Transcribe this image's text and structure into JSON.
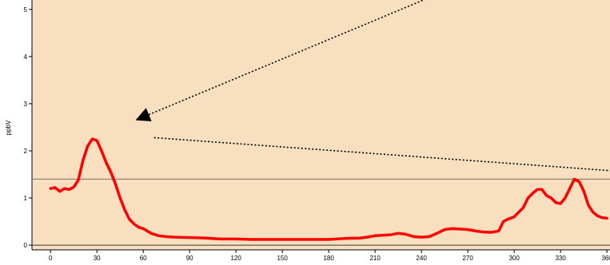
{
  "chart_data": {
    "type": "line",
    "title": "",
    "xlabel": "",
    "ylabel": "ppbV",
    "xlim": [
      -12,
      362
    ],
    "ylim": [
      -0.1,
      5.2
    ],
    "x_ticks": [
      0,
      30,
      60,
      90,
      120,
      150,
      180,
      210,
      240,
      270,
      300,
      330,
      360
    ],
    "y_ticks": [
      0,
      1,
      2,
      3,
      4,
      5
    ],
    "grid": false,
    "colors": {
      "plot_background": "#f7dfc0",
      "series": "#ff0000",
      "reference_line": "#8a7a6a",
      "arrows": "#000000"
    },
    "series": [
      {
        "x": [
          0,
          3,
          6,
          9,
          12,
          15,
          18,
          21,
          24,
          27,
          30,
          33,
          36,
          39,
          42,
          45,
          48,
          51,
          54,
          57,
          60,
          65,
          70,
          75,
          80,
          90,
          100,
          110,
          120,
          130,
          140,
          150,
          160,
          170,
          180,
          190,
          200,
          205,
          210,
          215,
          220,
          225,
          230,
          235,
          240,
          245,
          250,
          255,
          260,
          265,
          270,
          275,
          280,
          285,
          290,
          293,
          296,
          300,
          303,
          306,
          309,
          312,
          315,
          318,
          321,
          324,
          327,
          330,
          333,
          336,
          339,
          342,
          345,
          348,
          351,
          354,
          357,
          360
        ],
        "y": [
          1.2,
          1.22,
          1.14,
          1.2,
          1.18,
          1.23,
          1.38,
          1.8,
          2.1,
          2.25,
          2.22,
          2.0,
          1.75,
          1.55,
          1.3,
          1.0,
          0.75,
          0.55,
          0.45,
          0.38,
          0.35,
          0.25,
          0.2,
          0.18,
          0.17,
          0.16,
          0.15,
          0.13,
          0.13,
          0.12,
          0.12,
          0.12,
          0.12,
          0.12,
          0.12,
          0.14,
          0.15,
          0.17,
          0.2,
          0.21,
          0.22,
          0.25,
          0.23,
          0.18,
          0.17,
          0.18,
          0.25,
          0.33,
          0.35,
          0.34,
          0.33,
          0.3,
          0.28,
          0.27,
          0.3,
          0.5,
          0.55,
          0.6,
          0.7,
          0.8,
          1.0,
          1.1,
          1.18,
          1.18,
          1.05,
          1.0,
          0.9,
          0.88,
          1.0,
          1.2,
          1.4,
          1.35,
          1.15,
          0.85,
          0.7,
          0.62,
          0.58,
          0.57
        ]
      }
    ],
    "reference_lines": [
      {
        "orientation": "horizontal",
        "y": 1.4
      }
    ],
    "annotations": [
      {
        "type": "arrow",
        "style": "dotted",
        "from": [
          245,
          5.25
        ],
        "to": [
          55,
          2.65
        ]
      },
      {
        "type": "dotted_line",
        "from": [
          67,
          2.28
        ],
        "to": [
          362,
          1.58
        ]
      }
    ]
  }
}
